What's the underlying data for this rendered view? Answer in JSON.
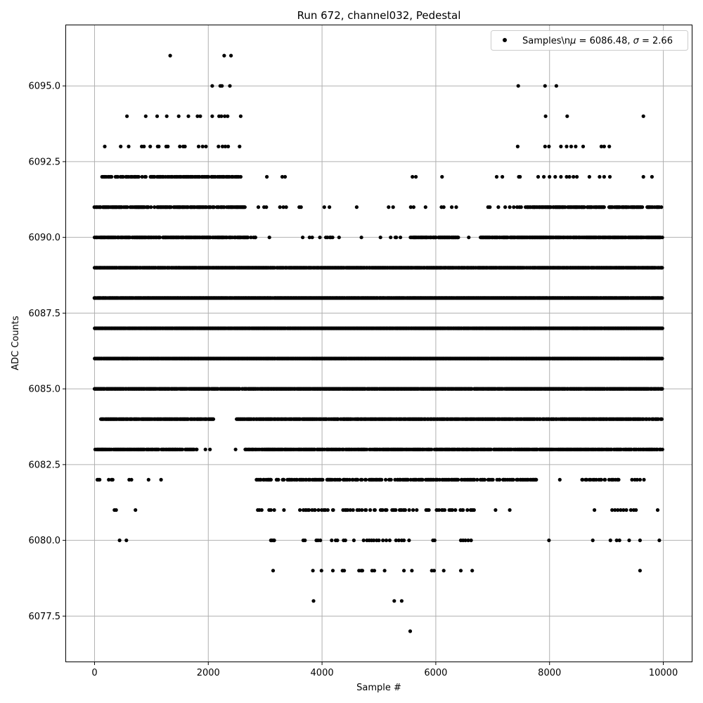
{
  "chart_data": {
    "type": "scatter",
    "title": "Run 672, channel032, Pedestal",
    "xlabel": "Sample #",
    "ylabel": "ADC Counts",
    "xlim": [
      -500,
      10500
    ],
    "ylim": [
      6076,
      6097
    ],
    "x_ticks": [
      0,
      2000,
      4000,
      6000,
      8000,
      10000
    ],
    "x_tick_labels": [
      "0",
      "2000",
      "4000",
      "6000",
      "8000",
      "10000"
    ],
    "y_ticks": [
      6077.5,
      6080.0,
      6082.5,
      6085.0,
      6087.5,
      6090.0,
      6092.5,
      6095.0
    ],
    "y_tick_labels": [
      "6077.5",
      "6080.0",
      "6082.5",
      "6085.0",
      "6087.5",
      "6090.0",
      "6092.5",
      "6095.0"
    ],
    "grid": true,
    "legend_position": "top-right",
    "marker_color": "#000000",
    "series": [
      {
        "name": "Samples\\n$\\mu$ = 6086.48, $\\sigma$ = 2.66",
        "legend_label_prefix": "Samples\\n",
        "legend_mu": "μ",
        "legend_mid": " = 6086.48, ",
        "legend_sigma": "σ",
        "legend_suffix": " = 2.66",
        "n_samples": 10000,
        "x_range": [
          0,
          9999
        ],
        "mean": 6086.48,
        "std": 2.66,
        "level_segments": [
          {
            "y": 6096,
            "x": [
              1330,
              2280,
              2400
            ]
          },
          {
            "y": 6095,
            "x": [
              2070,
              2210,
              2240,
              2380,
              7450,
              7920,
              8120
            ]
          },
          {
            "y": 6094,
            "x": [
              570,
              900,
              1100,
              1270,
              1480,
              1650,
              1810,
              1860,
              2070,
              2190,
              2230,
              2290,
              2340,
              2570,
              7930,
              8310,
              9650
            ]
          },
          {
            "y": 6093,
            "x": [
              180,
              460,
              600,
              830,
              870,
              980,
              1110,
              1130,
              1260,
              1290,
              1500,
              1560,
              1590,
              1830,
              1900,
              1960,
              2180,
              2250,
              2300,
              2350,
              2550,
              7440,
              7920,
              7990,
              8200,
              8300,
              8380,
              8460,
              8590,
              8910,
              8960,
              9050
            ]
          },
          {
            "y": 6092,
            "ranges": [
              [
                120,
                2630
              ]
            ],
            "density": 0.6,
            "x": [
              3030,
              3300,
              3350,
              5590,
              5650,
              6110,
              7070,
              7170,
              7460,
              7480,
              7800,
              7900,
              8000,
              8100,
              8200,
              8300,
              8350,
              8420,
              8480,
              8700,
              8880,
              8960,
              9060,
              9650,
              9800
            ]
          },
          {
            "y": 6091,
            "ranges": [
              [
                0,
                2650
              ],
              [
                7580,
                9990
              ]
            ],
            "density": 0.7,
            "x": [
              2880,
              2980,
              3020,
              3260,
              3320,
              3370,
              3600,
              3630,
              4040,
              4130,
              4610,
              5170,
              5250,
              5560,
              5610,
              5820,
              6100,
              6140,
              6280,
              6360,
              6920,
              6950,
              7100,
              7220,
              7300,
              7370,
              7430,
              7470,
              7500
            ]
          },
          {
            "y": 6090,
            "ranges": [
              [
                0,
                2700
              ],
              [
                5600,
                6400
              ],
              [
                6800,
                9990
              ]
            ],
            "density": 0.85,
            "sparse_ranges": [
              [
                2700,
                5600
              ],
              [
                6400,
                6800
              ]
            ],
            "sparse_density": 0.1
          },
          {
            "y": 6089,
            "ranges": [
              [
                0,
                9990
              ]
            ],
            "density": 0.92
          },
          {
            "y": 6088,
            "ranges": [
              [
                0,
                9990
              ]
            ],
            "density": 0.97
          },
          {
            "y": 6087,
            "ranges": [
              [
                0,
                9990
              ]
            ],
            "density": 0.97
          },
          {
            "y": 6086,
            "ranges": [
              [
                0,
                9990
              ]
            ],
            "density": 0.98
          },
          {
            "y": 6085,
            "ranges": [
              [
                0,
                9990
              ]
            ],
            "density": 0.95
          },
          {
            "y": 6084,
            "ranges": [
              [
                100,
                2100
              ],
              [
                2500,
                9990
              ]
            ],
            "density": 0.85
          },
          {
            "y": 6083,
            "ranges": [
              [
                0,
                1800
              ],
              [
                2650,
                9990
              ]
            ],
            "density": 0.8,
            "x": [
              1950,
              2030,
              2480
            ]
          },
          {
            "y": 6082,
            "ranges": [
              [
                2850,
                7800
              ],
              [
                8570,
                9250
              ]
            ],
            "density": 0.5,
            "x": [
              50,
              70,
              90,
              250,
              300,
              320,
              610,
              650,
              950,
              1170,
              8180,
              9450,
              9500,
              9540,
              9590,
              9660
            ]
          },
          {
            "y": 6081,
            "ranges": [
              [
                3600,
                6700
              ]
            ],
            "density": 0.3,
            "x": [
              350,
              380,
              720,
              2870,
              2900,
              2940,
              3070,
              3100,
              3160,
              3330,
              7050,
              7300,
              8790,
              9100,
              9150,
              9200,
              9250,
              9300,
              9350,
              9430,
              9480,
              9520,
              9900
            ]
          },
          {
            "y": 6080,
            "x": [
              440,
              560,
              3100,
              3120,
              3150,
              3160,
              3670,
              3700,
              3900,
              3930,
              3970,
              4170,
              4240,
              4270,
              4380,
              4410,
              4560,
              4730,
              4790,
              4830,
              4870,
              4910,
              4960,
              5000,
              5070,
              5130,
              5190,
              5300,
              5350,
              5400,
              5440,
              5530,
              5950,
              5980,
              6440,
              6480,
              6520,
              6570,
              6620,
              7990,
              8760,
              9070,
              9180,
              9230,
              9400,
              9590,
              9930
            ]
          },
          {
            "y": 6079,
            "x": [
              3140,
              3840,
              3990,
              4190,
              4360,
              4390,
              4650,
              4690,
              4710,
              4880,
              4920,
              5100,
              5440,
              5580,
              5930,
              5970,
              6140,
              6440,
              6640,
              9590
            ]
          },
          {
            "y": 6078,
            "x": [
              3850,
              5270,
              5400
            ]
          },
          {
            "y": 6077,
            "x": [
              5550
            ]
          }
        ]
      }
    ]
  }
}
